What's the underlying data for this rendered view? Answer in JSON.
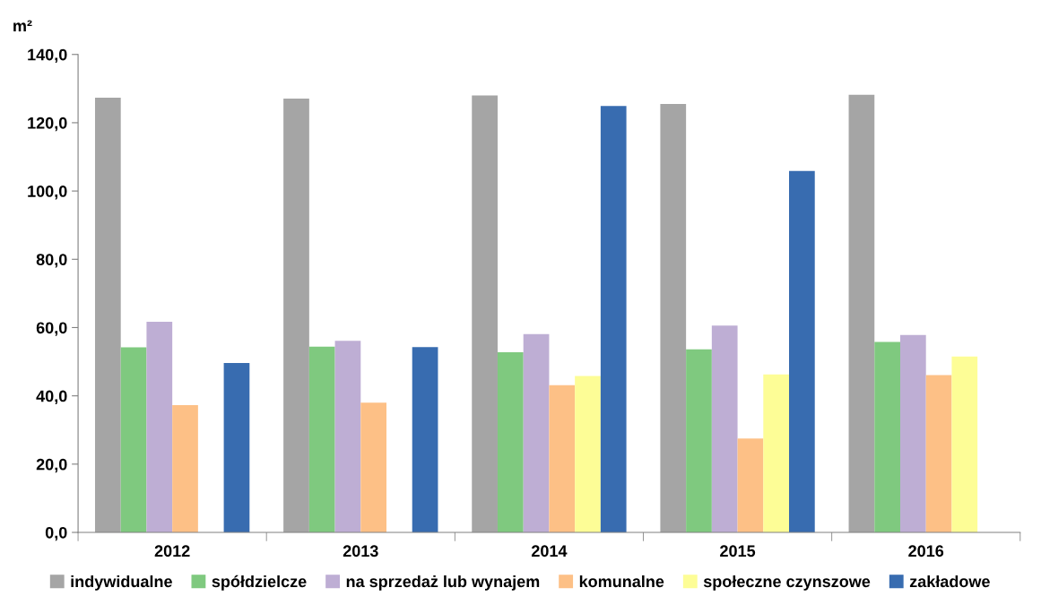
{
  "chart_data": {
    "type": "bar",
    "ylabel": "m²",
    "categories": [
      "2012",
      "2013",
      "2014",
      "2015",
      "2016"
    ],
    "series": [
      {
        "name": "indywidualne",
        "color": "#a5a5a5",
        "values": [
          127.3,
          127.1,
          128.0,
          125.5,
          128.2
        ]
      },
      {
        "name": "spółdzielcze",
        "color": "#7fc97f",
        "values": [
          54.2,
          54.4,
          52.8,
          53.6,
          55.8
        ]
      },
      {
        "name": "na sprzedaż lub wynajem",
        "color": "#beaed4",
        "values": [
          61.7,
          56.1,
          58.1,
          60.6,
          57.8
        ]
      },
      {
        "name": "komunalne",
        "color": "#fdc086",
        "values": [
          37.3,
          38.0,
          43.1,
          27.5,
          46.1
        ]
      },
      {
        "name": "społeczne czynszowe",
        "color": "#fdfd96",
        "values": [
          null,
          null,
          45.8,
          46.3,
          51.5
        ]
      },
      {
        "name": "zakładowe",
        "color": "#386cb0",
        "values": [
          49.6,
          54.3,
          124.9,
          105.9,
          null
        ]
      }
    ],
    "ylim": [
      0,
      140
    ],
    "yticks": [
      {
        "value": 0,
        "label": "0,0"
      },
      {
        "value": 20,
        "label": "20,0"
      },
      {
        "value": 40,
        "label": "40,0"
      },
      {
        "value": 60,
        "label": "60,0"
      },
      {
        "value": 80,
        "label": "80,0"
      },
      {
        "value": 100,
        "label": "100,0"
      },
      {
        "value": 120,
        "label": "120,0"
      },
      {
        "value": 140,
        "label": "140,0"
      }
    ],
    "grid": false,
    "legend": "bottom"
  }
}
